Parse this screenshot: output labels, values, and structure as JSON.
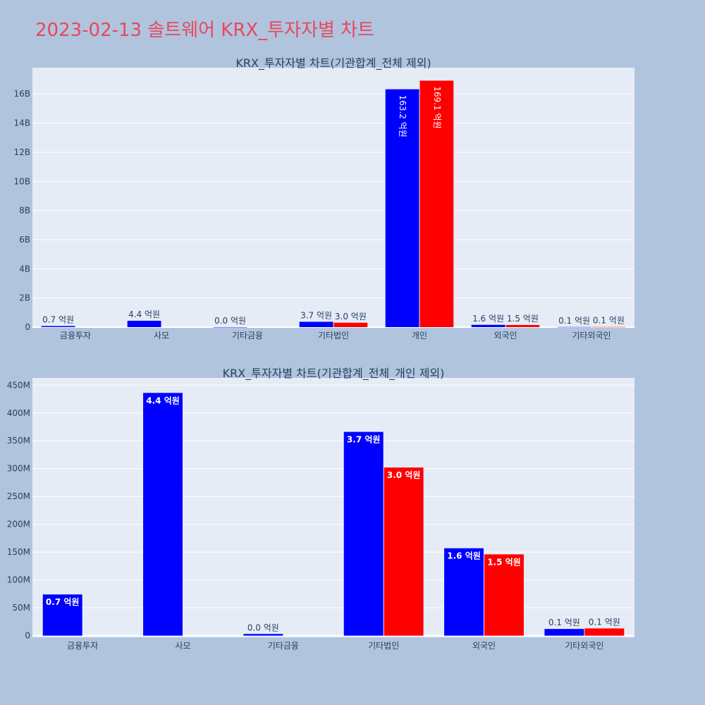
{
  "title": "2023-02-13 솔트웨어 KRX_투자자별 차트",
  "colors": {
    "buy": "#0000ff",
    "sell": "#ff0000",
    "plot_bg": "#e5ecf6",
    "page_bg": "#b0c4de",
    "title": "#e8475f",
    "text": "#2a3f5f"
  },
  "chart_data": [
    {
      "type": "bar",
      "title": "KRX_투자자별 차트(기관합계_전체 제외)",
      "categories": [
        "금융투자",
        "사모",
        "기타금융",
        "기타법인",
        "개인",
        "외국인",
        "기타외국인"
      ],
      "series": [
        {
          "color": "#0000ff",
          "values": [
            74000000,
            436000000,
            3000000,
            366000000,
            16320000000,
            157000000,
            12000000
          ],
          "labels": [
            "0.7 억원",
            "4.4 억원",
            "0.0 억원",
            "3.7 억원",
            "163.2 억원",
            "1.6 억원",
            "0.1 억원"
          ]
        },
        {
          "color": "#ff0000",
          "values": [
            0,
            0,
            0,
            302000000,
            16910000000,
            146000000,
            13000000
          ],
          "labels": [
            "",
            "",
            "",
            "3.0 억원",
            "169.1 억원",
            "1.5 억원",
            "0.1 억원"
          ]
        }
      ],
      "ylim": [
        0,
        17800000000
      ],
      "yticks": [
        0,
        2000000000,
        4000000000,
        6000000000,
        8000000000,
        10000000000,
        12000000000,
        14000000000,
        16000000000
      ],
      "ytick_labels": [
        "0",
        "2B",
        "4B",
        "6B",
        "8B",
        "10B",
        "12B",
        "14B",
        "16B"
      ],
      "grid": true
    },
    {
      "type": "bar",
      "title": "KRX_투자자별 차트(기관합계_전체_개인 제외)",
      "categories": [
        "금융투자",
        "사모",
        "기타금융",
        "기타법인",
        "외국인",
        "기타외국인"
      ],
      "series": [
        {
          "color": "#0000ff",
          "values": [
            74000000,
            436000000,
            3000000,
            366000000,
            157000000,
            12000000
          ],
          "labels": [
            "0.7 억원",
            "4.4 억원",
            "0.0 억원",
            "3.7 억원",
            "1.6 억원",
            "0.1 억원"
          ]
        },
        {
          "color": "#ff0000",
          "values": [
            0,
            0,
            0,
            302000000,
            146000000,
            13000000
          ],
          "labels": [
            "",
            "",
            "",
            "3.0 억원",
            "1.5 억원",
            "0.1 억원"
          ]
        }
      ],
      "ylim": [
        -3000000,
        463000000
      ],
      "yticks": [
        0,
        50000000,
        100000000,
        150000000,
        200000000,
        250000000,
        300000000,
        350000000,
        400000000,
        450000000
      ],
      "ytick_labels": [
        "0",
        "50M",
        "100M",
        "150M",
        "200M",
        "250M",
        "300M",
        "350M",
        "400M",
        "450M"
      ],
      "grid": true
    }
  ]
}
